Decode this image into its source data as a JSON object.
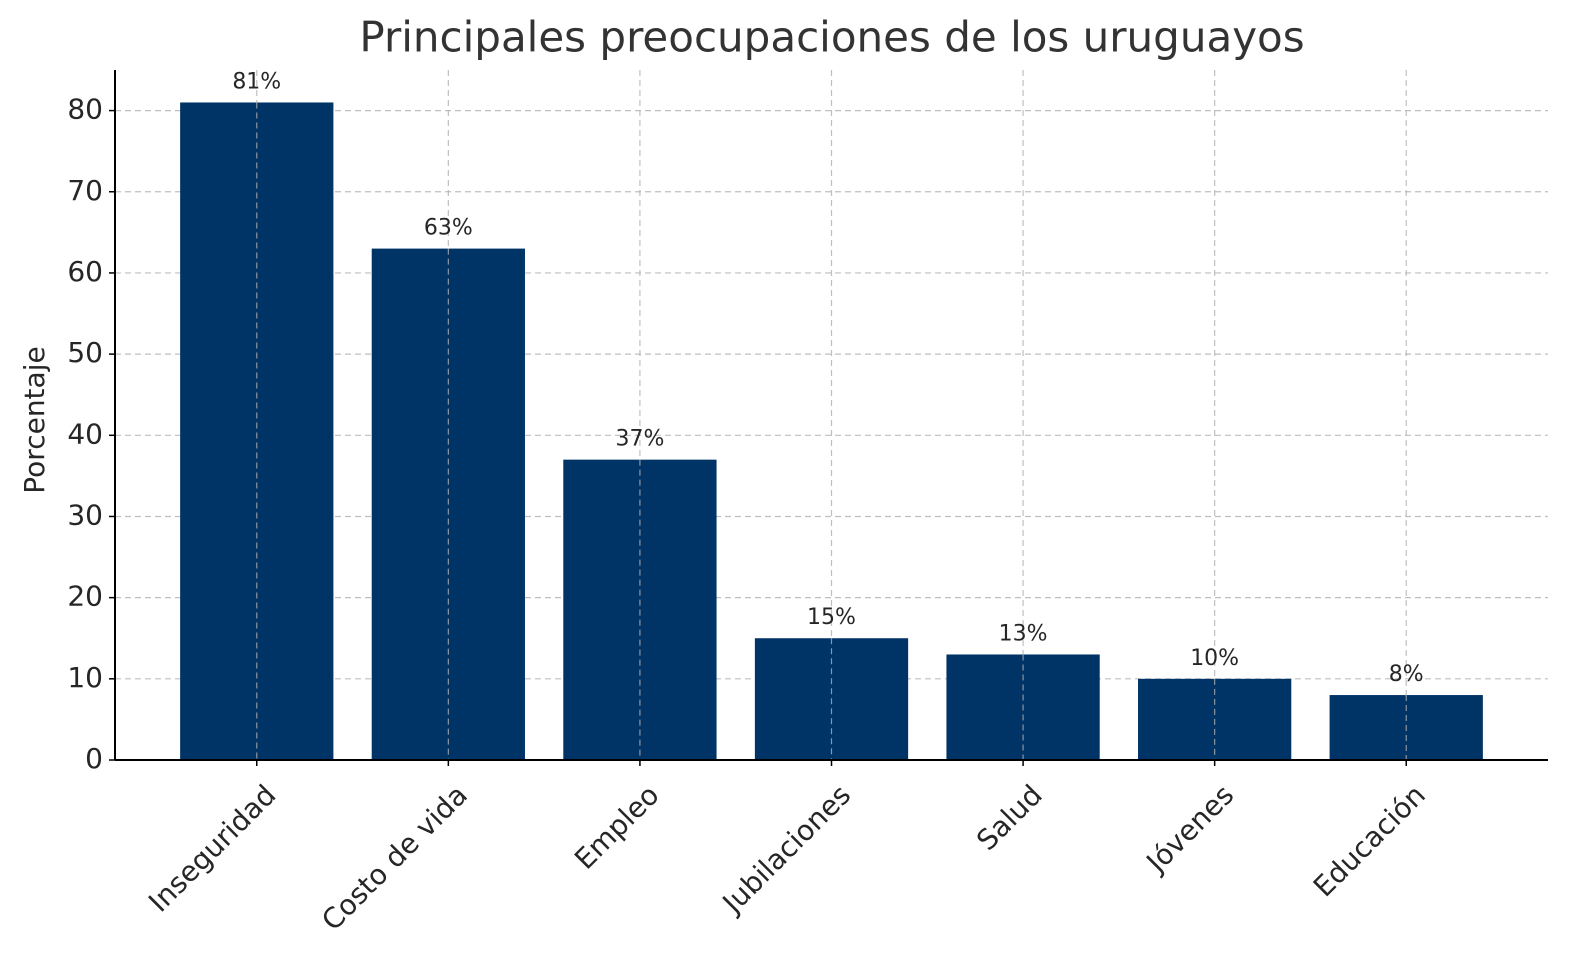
{
  "chart_data": {
    "type": "bar",
    "title": "Principales preocupaciones de los uruguayos",
    "y_label": "Porcentaje",
    "categories": [
      "Inseguridad",
      "Costo de vida",
      "Empleo",
      "Jubilaciones",
      "Salud",
      "Jóvenes",
      "Educación"
    ],
    "values": [
      81,
      63,
      37,
      15,
      13,
      10,
      8
    ],
    "value_labels": [
      "81%",
      "63%",
      "37%",
      "15%",
      "13%",
      "10%",
      "8%"
    ],
    "color": "#003366",
    "ylim": [
      0,
      85
    ],
    "yticks": [
      0,
      10,
      20,
      30,
      40,
      50,
      60,
      70,
      80
    ],
    "grid": true
  }
}
